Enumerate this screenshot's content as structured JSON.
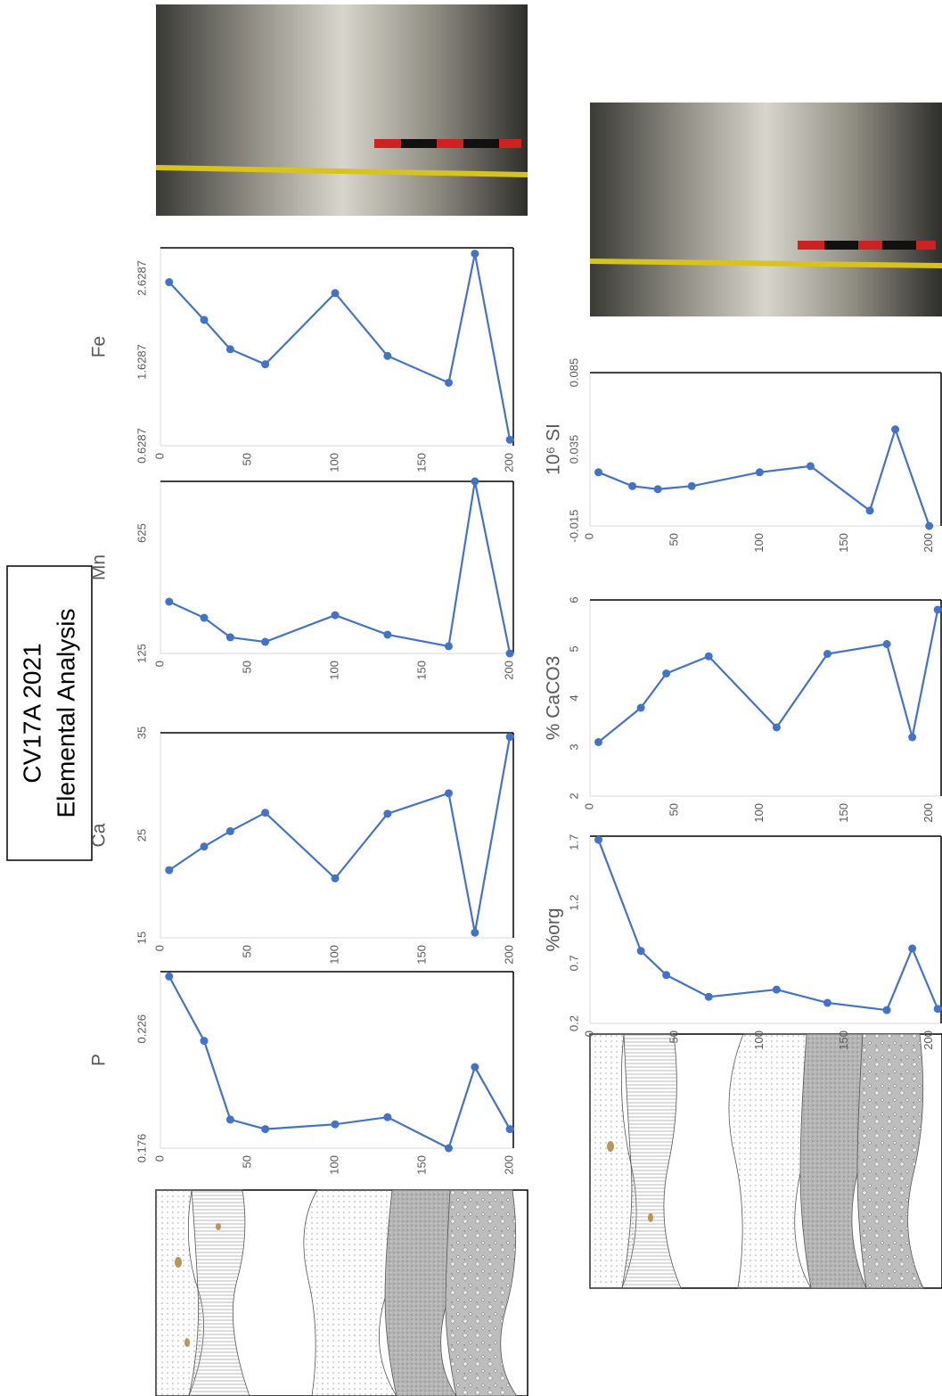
{
  "figure_title": [
    "CV17A  2021",
    "Elemental Analysis"
  ],
  "chart_data": [
    {
      "type": "line",
      "title": "P",
      "x": [
        5,
        25,
        40,
        60,
        100,
        130,
        165,
        180,
        200
      ],
      "values": [
        0.248,
        0.221,
        0.188,
        0.184,
        0.186,
        0.189,
        0.176,
        0.21,
        0.184
      ],
      "xlim": [
        0,
        202
      ],
      "xticks": [
        0,
        50,
        100,
        150,
        200
      ],
      "ylim": [
        0.176,
        0.25
      ],
      "yticks": [
        0.176,
        0.226
      ],
      "color": "#4472c4"
    },
    {
      "type": "line",
      "title": "Ca",
      "x": [
        5,
        25,
        40,
        60,
        100,
        130,
        165,
        180,
        200
      ],
      "values": [
        21.6,
        23.9,
        25.4,
        27.2,
        20.8,
        27.1,
        29.1,
        15.5,
        34.6
      ],
      "xlim": [
        0,
        202
      ],
      "xticks": [
        0,
        50,
        100,
        150,
        200
      ],
      "ylim": [
        15,
        35
      ],
      "yticks": [
        15,
        25,
        35
      ],
      "color": "#4472c4"
    },
    {
      "type": "line",
      "title": "Mn",
      "x": [
        5,
        25,
        40,
        60,
        100,
        130,
        165,
        180,
        200
      ],
      "values": [
        340,
        273,
        192,
        173,
        284,
        203,
        155,
        840,
        125
      ],
      "xlim": [
        0,
        202
      ],
      "xticks": [
        0,
        50,
        100,
        150,
        200
      ],
      "ylim": [
        125,
        840
      ],
      "yticks": [
        125,
        625
      ],
      "color": "#4472c4"
    },
    {
      "type": "line",
      "title": "Fe",
      "x": [
        5,
        25,
        40,
        60,
        100,
        130,
        165,
        180,
        200
      ],
      "values": [
        2.58,
        2.13,
        1.78,
        1.6,
        2.45,
        1.7,
        1.38,
        2.92,
        0.7
      ],
      "xlim": [
        0,
        202
      ],
      "xticks": [
        0,
        50,
        100,
        150,
        200
      ],
      "ylim": [
        0.6287,
        2.99
      ],
      "yticks": [
        0.6287,
        1.6287,
        2.6287
      ],
      "color": "#4472c4"
    },
    {
      "type": "line",
      "title": "%org",
      "x": [
        5,
        30,
        45,
        70,
        110,
        140,
        175,
        190,
        205
      ],
      "values": [
        1.72,
        0.8,
        0.6,
        0.42,
        0.48,
        0.37,
        0.31,
        0.82,
        0.32
      ],
      "xlim": [
        0,
        207
      ],
      "xticks": [
        0,
        50,
        100,
        150,
        200
      ],
      "ylim": [
        0.2,
        1.75
      ],
      "yticks": [
        0.2,
        0.7,
        1.2,
        1.7
      ],
      "color": "#4472c4"
    },
    {
      "type": "line",
      "title": "% CaCO3",
      "x": [
        5,
        30,
        45,
        70,
        110,
        140,
        175,
        190,
        205
      ],
      "values": [
        3.1,
        3.8,
        4.5,
        4.85,
        3.4,
        4.9,
        5.1,
        3.2,
        5.8
      ],
      "xlim": [
        0,
        207
      ],
      "xticks": [
        0,
        50,
        100,
        150,
        200
      ],
      "ylim": [
        2,
        6
      ],
      "yticks": [
        2,
        3,
        4,
        5,
        6
      ],
      "color": "#4472c4"
    },
    {
      "type": "line",
      "title": "10⁶ SI",
      "x": [
        5,
        25,
        40,
        60,
        100,
        130,
        165,
        180,
        200
      ],
      "values": [
        0.02,
        0.011,
        0.009,
        0.011,
        0.02,
        0.024,
        -0.005,
        0.048,
        -0.015
      ],
      "xlim": [
        0,
        207
      ],
      "xticks": [
        0,
        50,
        100,
        150,
        200
      ],
      "ylim": [
        -0.015,
        0.085
      ],
      "yticks": [
        -0.015,
        0.035,
        0.085
      ],
      "color": "#4472c4"
    }
  ]
}
